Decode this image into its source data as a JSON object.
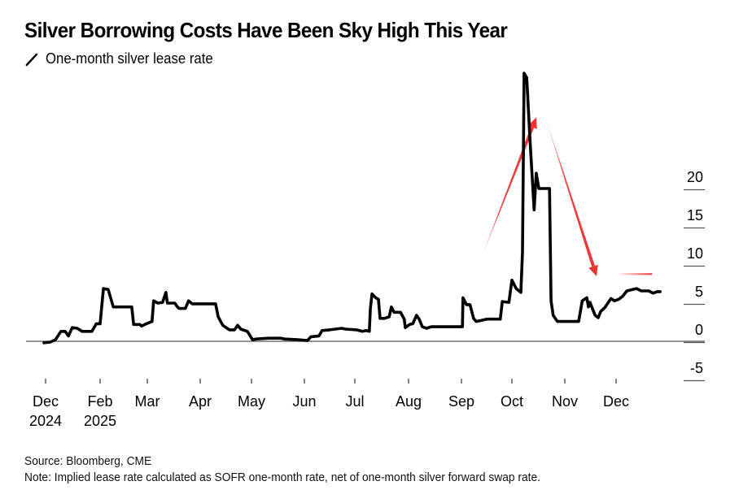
{
  "title": "Silver Borrowing Costs Have Been Sky High This Year",
  "legend": {
    "label": "One-month silver lease rate",
    "icon": "line-series-icon"
  },
  "footer": {
    "source": "Source: Bloomberg, CME",
    "note": "Note: Implied lease rate calculated as SOFR one-month rate, net of one-month silver forward swap rate."
  },
  "colors": {
    "line": "#000000",
    "annotation": "#ee3333",
    "axis": "#555555"
  },
  "chart_data": {
    "type": "line",
    "title": "Silver Borrowing Costs Have Been Sky High This Year",
    "xlabel": "",
    "ylabel": "",
    "ylim": [
      -5,
      35
    ],
    "y_ticks": [
      20,
      15,
      10,
      5,
      0,
      -5
    ],
    "y_axis_position": "right",
    "grid": false,
    "legend_position": "top-left",
    "x_ticks": [
      {
        "label": "Dec",
        "sub": "2024"
      },
      {
        "label": "Feb",
        "sub": "2025"
      },
      {
        "label": "Mar",
        "sub": ""
      },
      {
        "label": "Apr",
        "sub": ""
      },
      {
        "label": "May",
        "sub": ""
      },
      {
        "label": "Jun",
        "sub": ""
      },
      {
        "label": "Jul",
        "sub": ""
      },
      {
        "label": "Aug",
        "sub": ""
      },
      {
        "label": "Sep",
        "sub": ""
      },
      {
        "label": "Oct",
        "sub": ""
      },
      {
        "label": "Nov",
        "sub": ""
      },
      {
        "label": "Dec",
        "sub": ""
      }
    ],
    "x_unit": "fractional month-tick index (0 = first 'Dec 2024' tick)",
    "series": [
      {
        "name": "One-month silver lease rate",
        "points": [
          [
            -0.03,
            -0.2
          ],
          [
            0.09,
            -0.1
          ],
          [
            0.18,
            0.2
          ],
          [
            0.28,
            1.3
          ],
          [
            0.36,
            1.3
          ],
          [
            0.42,
            0.7
          ],
          [
            0.49,
            1.8
          ],
          [
            0.58,
            1.7
          ],
          [
            0.67,
            1.3
          ],
          [
            0.75,
            1.3
          ],
          [
            0.85,
            1.3
          ],
          [
            0.93,
            2.3
          ],
          [
            1.0,
            2.3
          ],
          [
            1.07,
            6.9
          ],
          [
            1.17,
            6.8
          ],
          [
            1.28,
            4.5
          ],
          [
            1.47,
            4.5
          ],
          [
            1.67,
            4.5
          ],
          [
            1.71,
            2.2
          ],
          [
            1.84,
            2.2
          ],
          [
            1.88,
            2.0
          ],
          [
            1.98,
            2.3
          ],
          [
            2.09,
            2.6
          ],
          [
            2.12,
            5.3
          ],
          [
            2.2,
            5.0
          ],
          [
            2.29,
            5.1
          ],
          [
            2.35,
            6.4
          ],
          [
            2.38,
            5.0
          ],
          [
            2.52,
            5.0
          ],
          [
            2.57,
            4.5
          ],
          [
            2.6,
            4.3
          ],
          [
            2.72,
            4.3
          ],
          [
            2.78,
            5.3
          ],
          [
            2.85,
            4.9
          ],
          [
            3.3,
            4.9
          ],
          [
            3.35,
            3.2
          ],
          [
            3.44,
            2.1
          ],
          [
            3.57,
            1.5
          ],
          [
            3.67,
            1.5
          ],
          [
            3.73,
            2.1
          ],
          [
            3.79,
            1.6
          ],
          [
            3.92,
            1.3
          ],
          [
            4.02,
            0.2
          ],
          [
            4.09,
            0.3
          ],
          [
            4.32,
            0.4
          ],
          [
            4.55,
            0.4
          ],
          [
            4.63,
            0.3
          ],
          [
            4.88,
            0.2
          ],
          [
            5.06,
            0.1
          ],
          [
            5.13,
            0.6
          ],
          [
            5.29,
            0.7
          ],
          [
            5.35,
            1.4
          ],
          [
            5.5,
            1.5
          ],
          [
            5.74,
            1.7
          ],
          [
            5.82,
            1.6
          ],
          [
            6.03,
            1.5
          ],
          [
            6.14,
            1.3
          ],
          [
            6.21,
            1.4
          ],
          [
            6.27,
            1.3
          ],
          [
            6.29,
            4.3
          ],
          [
            6.32,
            6.2
          ],
          [
            6.39,
            5.7
          ],
          [
            6.44,
            5.5
          ],
          [
            6.47,
            3.0
          ],
          [
            6.55,
            3.0
          ],
          [
            6.64,
            3.2
          ],
          [
            6.68,
            4.5
          ],
          [
            6.73,
            3.8
          ],
          [
            6.85,
            3.8
          ],
          [
            6.92,
            2.9
          ],
          [
            6.94,
            1.8
          ],
          [
            7.02,
            2.2
          ],
          [
            7.08,
            2.3
          ],
          [
            7.15,
            3.4
          ],
          [
            7.2,
            2.9
          ],
          [
            7.26,
            1.9
          ],
          [
            7.34,
            1.7
          ],
          [
            7.43,
            1.9
          ],
          [
            8.02,
            1.9
          ],
          [
            8.03,
            5.7
          ],
          [
            8.1,
            4.8
          ],
          [
            8.17,
            4.8
          ],
          [
            8.24,
            3.0
          ],
          [
            8.29,
            2.6
          ],
          [
            8.37,
            2.7
          ],
          [
            8.5,
            2.9
          ],
          [
            8.77,
            2.9
          ],
          [
            8.81,
            5.2
          ],
          [
            8.94,
            5.1
          ],
          [
            9.0,
            8.0
          ],
          [
            9.08,
            6.9
          ],
          [
            9.17,
            6.4
          ],
          [
            9.2,
            11.7
          ],
          [
            9.23,
            35.1
          ],
          [
            9.28,
            34.5
          ],
          [
            9.34,
            26.6
          ],
          [
            9.42,
            17.2
          ],
          [
            9.46,
            22.0
          ],
          [
            9.51,
            20.0
          ],
          [
            9.71,
            20.0
          ],
          [
            9.74,
            5.3
          ],
          [
            9.78,
            3.4
          ],
          [
            9.86,
            2.6
          ],
          [
            10.09,
            2.6
          ],
          [
            10.27,
            2.6
          ],
          [
            10.34,
            5.3
          ],
          [
            10.43,
            5.7
          ],
          [
            10.46,
            4.5
          ],
          [
            10.49,
            5.1
          ],
          [
            10.59,
            3.4
          ],
          [
            10.65,
            3.1
          ],
          [
            10.7,
            3.9
          ],
          [
            10.78,
            4.4
          ],
          [
            10.9,
            5.6
          ],
          [
            10.97,
            5.3
          ],
          [
            11.05,
            5.5
          ],
          [
            11.13,
            5.9
          ],
          [
            11.21,
            6.6
          ],
          [
            11.33,
            6.8
          ],
          [
            11.4,
            6.9
          ],
          [
            11.49,
            6.6
          ],
          [
            11.64,
            6.6
          ],
          [
            11.72,
            6.3
          ],
          [
            11.8,
            6.5
          ],
          [
            11.86,
            6.5
          ]
        ]
      }
    ],
    "annotations": [
      {
        "type": "arrow",
        "color": "red",
        "meaning": "rise into October peak",
        "from": [
          8.37,
          10.5
        ],
        "to": [
          9.46,
          29.3
        ]
      },
      {
        "type": "arrow",
        "color": "red",
        "meaning": "fall after October peak",
        "from": [
          9.6,
          30.0
        ],
        "to": [
          10.62,
          8.5
        ]
      },
      {
        "type": "line",
        "color": "red",
        "meaning": "current level marker",
        "from": [
          11.0,
          8.8
        ],
        "to": [
          11.7,
          8.8
        ]
      }
    ]
  }
}
